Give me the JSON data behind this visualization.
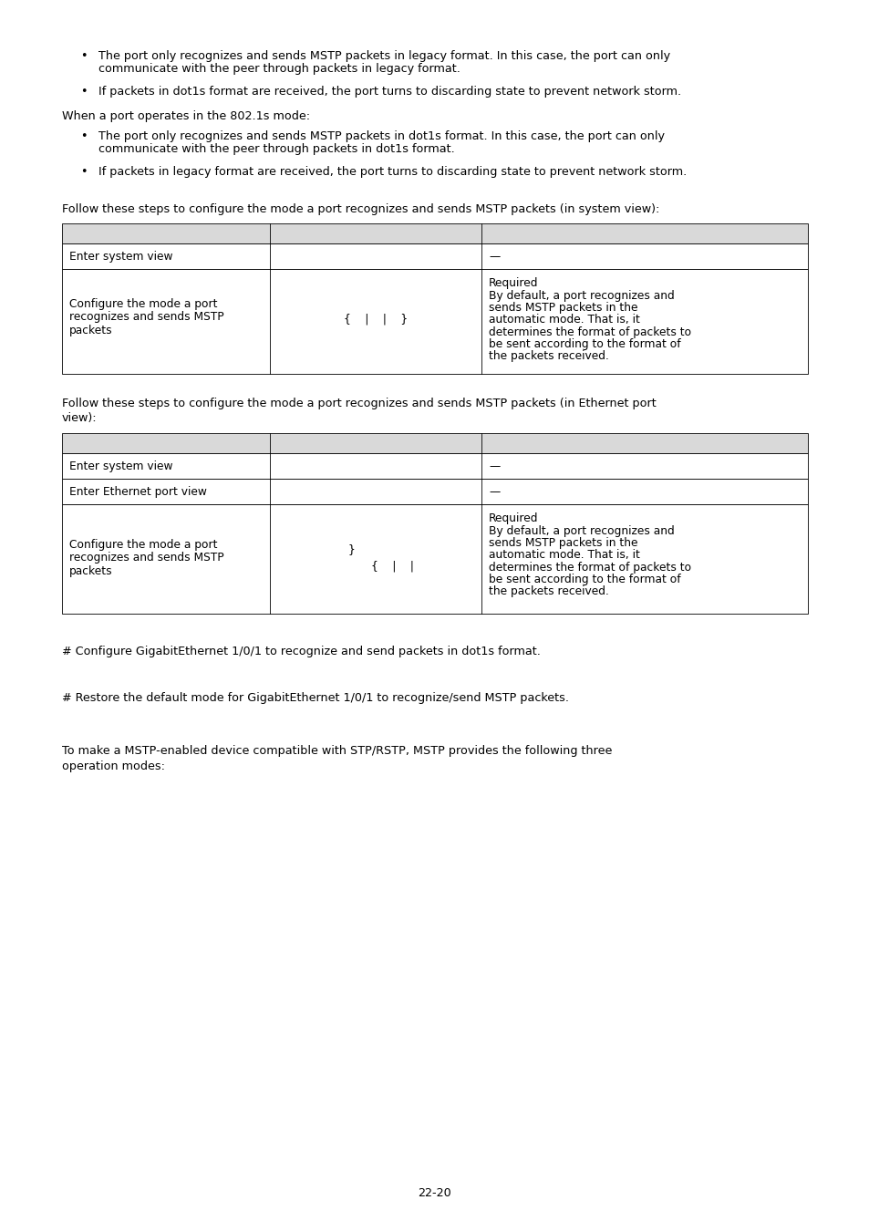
{
  "bg_color": "#ffffff",
  "text_color": "#000000",
  "page_number": "22-20",
  "bullet_points_1": [
    "The port only recognizes and sends MSTP packets in legacy format. In this case, the port can only communicate with the peer through packets in legacy format.",
    "If packets in dot1s format are received, the port turns to discarding state to prevent network storm."
  ],
  "para_802": "When a port operates in the 802.1s mode:",
  "bullet_points_2": [
    "The port only recognizes and sends MSTP packets in dot1s format. In this case, the port can only communicate with the peer through packets in dot1s format.",
    "If packets in legacy format are received, the port turns to discarding state to prevent network storm."
  ],
  "table1_intro": "Follow these steps to configure the mode a port recognizes and sends MSTP packets (in system view):",
  "table1_header_bg": "#d9d9d9",
  "table1_rows": [
    {
      "col1": "Enter system view",
      "col2": "",
      "col3": "—"
    },
    {
      "col1": "Configure the mode a port\nrecognizes and sends MSTP\npackets",
      "col2": "{    |    |    }",
      "col3": "Required\n\nBy default, a port recognizes and sends MSTP packets in the automatic mode. That is, it determines the format of packets to be sent according to the format of the packets received."
    }
  ],
  "table2_intro_line1": "Follow these steps to configure the mode a port recognizes and sends MSTP packets (in Ethernet port",
  "table2_intro_line2": "view):",
  "table2_rows": [
    {
      "col1": "Enter system view",
      "col2": "",
      "col3": "—"
    },
    {
      "col1": "Enter Ethernet port view",
      "col2": "",
      "col3": "—"
    },
    {
      "col1": "Configure the mode a port\nrecognizes and sends MSTP\npackets",
      "col2_line1": "{    |    |",
      "col2_line2": "}",
      "col3": "Required\n\nBy default, a port recognizes and sends MSTP packets in the automatic mode. That is, it determines the format of packets to be sent according to the format of the packets received."
    }
  ],
  "example_line1": "# Configure GigabitEthernet 1/0/1 to recognize and send packets in dot1s format.",
  "example_line2": "# Restore the default mode for GigabitEthernet 1/0/1 to recognize/send MSTP packets.",
  "footer_line1": "To make a MSTP-enabled device compatible with STP/RSTP, MSTP provides the following three",
  "footer_line2": "operation modes:"
}
